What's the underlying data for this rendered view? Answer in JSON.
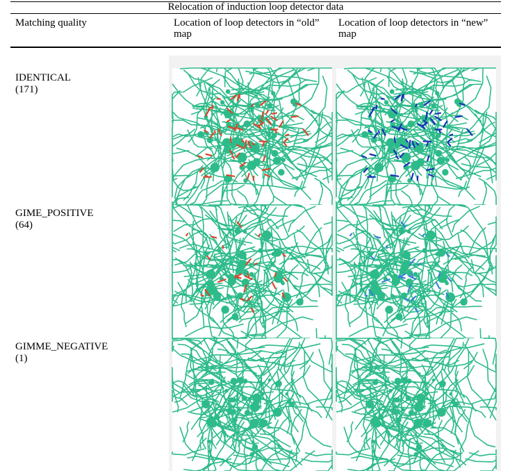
{
  "table": {
    "title": "Relocation of induction loop detector data",
    "header": [
      "Matching quality",
      "Location of loop detectors in “old” map",
      "Location of loop detectors in “new” map"
    ],
    "rows": [
      {
        "quality": "IDENTICAL",
        "count": "(171)"
      },
      {
        "quality": "GIME_POSITIVE",
        "count": "(64)"
      },
      {
        "quality": "GIMME_NEGATIVE",
        "count": "(1)"
      }
    ]
  }
}
